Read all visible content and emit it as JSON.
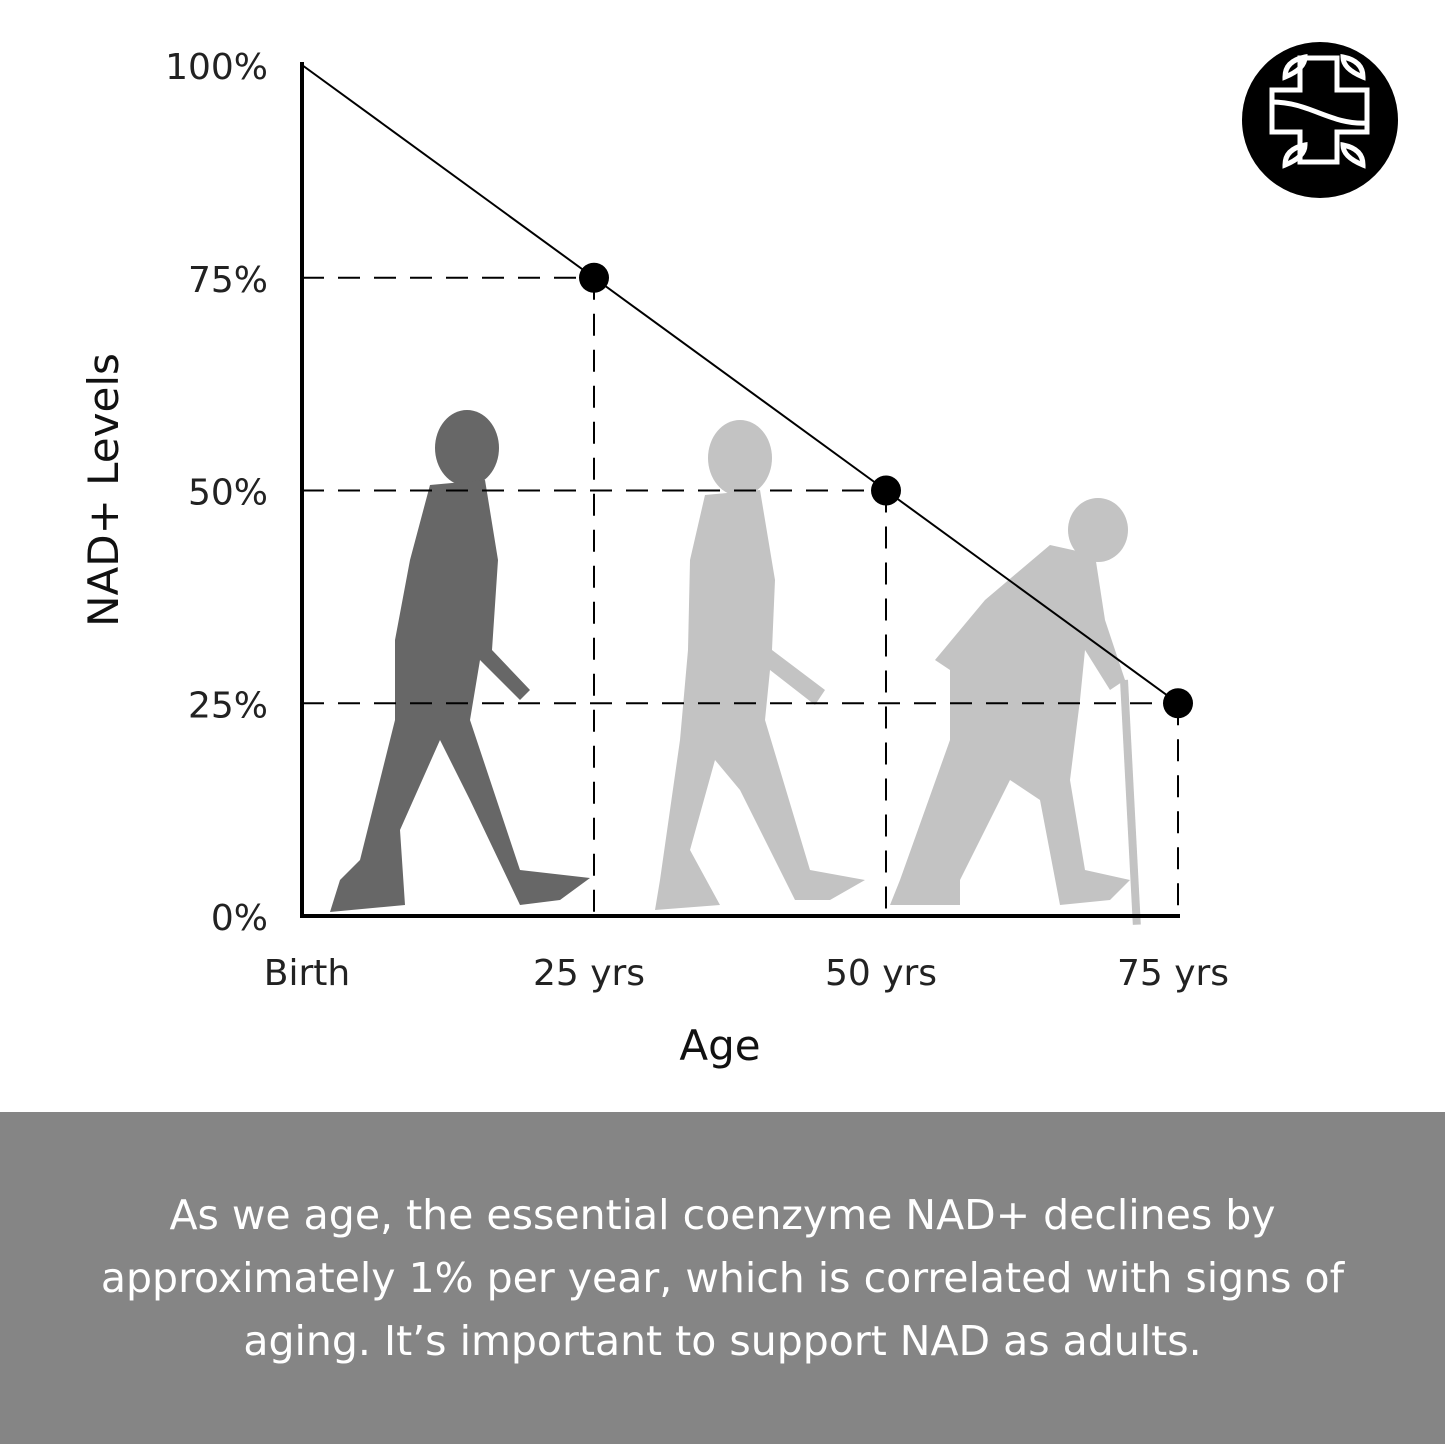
{
  "chart_data": {
    "type": "line",
    "xlabel": "Age",
    "ylabel": "NAD+ Levels",
    "categories": [
      "Birth",
      "25 yrs",
      "50 yrs",
      "75 yrs"
    ],
    "x": [
      0,
      25,
      50,
      75
    ],
    "values": [
      100,
      75,
      50,
      25
    ],
    "marked_points": [
      1,
      2,
      3
    ],
    "yticks": [
      "0%",
      "25%",
      "50%",
      "75%",
      "100%"
    ],
    "ylim": [
      0,
      100
    ],
    "xlim": [
      0,
      75
    ],
    "grid": "dashed guide lines at marked points",
    "colors": {
      "line": "#000000",
      "silhouette_young": "#676767",
      "silhouette_older": "#c3c3c3"
    }
  },
  "caption": "As we age, the essential coenzyme NAD+ declines by approximately 1% per year, which is correlated with signs of aging. It’s important to support NAD as adults.",
  "logo": {
    "icon": "cross-with-leaves-logo",
    "color": "#000000"
  },
  "band_color": "#858585"
}
